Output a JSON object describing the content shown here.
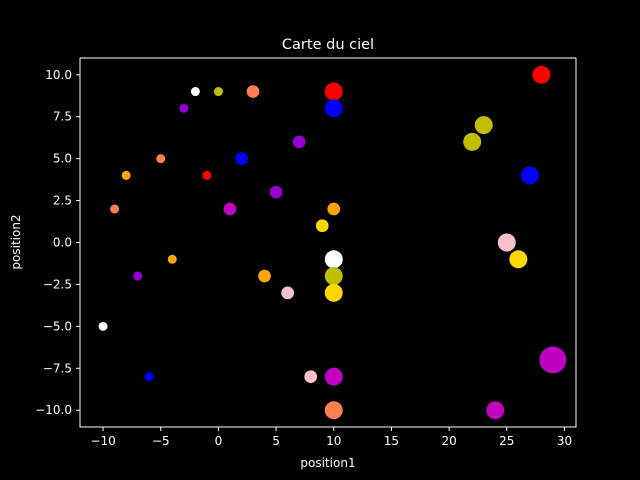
{
  "chart_data": {
    "type": "scatter",
    "title": "Carte du ciel",
    "xlabel": "position1",
    "ylabel": "position2",
    "xlim": [
      -12,
      31
    ],
    "ylim": [
      -11,
      11
    ],
    "xticks": [
      -10,
      -5,
      0,
      5,
      10,
      15,
      20,
      25,
      30
    ],
    "yticks": [
      -10.0,
      -7.5,
      -5.0,
      -2.5,
      0.0,
      2.5,
      5.0,
      7.5,
      10.0
    ],
    "xtick_labels": [
      "−10",
      "−5",
      "0",
      "5",
      "10",
      "15",
      "20",
      "25",
      "30"
    ],
    "ytick_labels": [
      "−10.0",
      "−7.5",
      "−5.0",
      "−2.5",
      "0.0",
      "2.5",
      "5.0",
      "7.5",
      "10.0"
    ],
    "grid": false,
    "background": "#000000",
    "foreground": "#ffffff",
    "points": [
      {
        "x": -10,
        "y": -5,
        "size": 1,
        "color": "#ffffff"
      },
      {
        "x": -9,
        "y": 2,
        "size": 1,
        "color": "#ff7f50"
      },
      {
        "x": -8,
        "y": 4,
        "size": 1,
        "color": "#ffa500"
      },
      {
        "x": -7,
        "y": -2,
        "size": 1,
        "color": "#9400d3"
      },
      {
        "x": -6,
        "y": -8,
        "size": 1,
        "color": "#0000ff"
      },
      {
        "x": -5,
        "y": 5,
        "size": 1,
        "color": "#ff7f50"
      },
      {
        "x": -4,
        "y": -1,
        "size": 1,
        "color": "#ffa500"
      },
      {
        "x": -3,
        "y": 8,
        "size": 1,
        "color": "#9400d3"
      },
      {
        "x": -2,
        "y": 9,
        "size": 1,
        "color": "#ffffff"
      },
      {
        "x": -1,
        "y": 4,
        "size": 1,
        "color": "#ff0000"
      },
      {
        "x": 0,
        "y": 9,
        "size": 1,
        "color": "#bfbf00"
      },
      {
        "x": 1,
        "y": 2,
        "size": 2,
        "color": "#bf00bf"
      },
      {
        "x": 2,
        "y": 5,
        "size": 2,
        "color": "#0000ff"
      },
      {
        "x": 3,
        "y": 9,
        "size": 2,
        "color": "#ff7f50"
      },
      {
        "x": 4,
        "y": -2,
        "size": 2,
        "color": "#ffa500"
      },
      {
        "x": 5,
        "y": 3,
        "size": 2,
        "color": "#9400d3"
      },
      {
        "x": 6,
        "y": -3,
        "size": 2,
        "color": "#ffc0cb"
      },
      {
        "x": 7,
        "y": 6,
        "size": 2,
        "color": "#9400d3"
      },
      {
        "x": 8,
        "y": -8,
        "size": 2,
        "color": "#ffc0cb"
      },
      {
        "x": 9,
        "y": 1,
        "size": 2,
        "color": "#ffd700"
      },
      {
        "x": 10,
        "y": 2,
        "size": 2,
        "color": "#ffa500"
      },
      {
        "x": 10,
        "y": 9,
        "size": 4,
        "color": "#ff0000"
      },
      {
        "x": 10,
        "y": 8,
        "size": 4,
        "color": "#0000ff"
      },
      {
        "x": 10,
        "y": -1,
        "size": 4,
        "color": "#ffffff"
      },
      {
        "x": 10,
        "y": -2,
        "size": 4,
        "color": "#bfbf00"
      },
      {
        "x": 10,
        "y": -3,
        "size": 4,
        "color": "#ffd700"
      },
      {
        "x": 10,
        "y": -8,
        "size": 4,
        "color": "#bf00bf"
      },
      {
        "x": 10,
        "y": -10,
        "size": 4,
        "color": "#ff7f50"
      },
      {
        "x": 22,
        "y": 6,
        "size": 4,
        "color": "#bfbf00"
      },
      {
        "x": 23,
        "y": 7,
        "size": 4,
        "color": "#bfbf00"
      },
      {
        "x": 24,
        "y": -10,
        "size": 4,
        "color": "#bf00bf"
      },
      {
        "x": 25,
        "y": 0,
        "size": 4,
        "color": "#ffc0cb"
      },
      {
        "x": 26,
        "y": -1,
        "size": 4,
        "color": "#ffd700"
      },
      {
        "x": 27,
        "y": 4,
        "size": 4,
        "color": "#0000ff"
      },
      {
        "x": 28,
        "y": 10,
        "size": 4,
        "color": "#ff0000"
      },
      {
        "x": 29,
        "y": -7,
        "size": 9,
        "color": "#bf00bf"
      }
    ]
  }
}
